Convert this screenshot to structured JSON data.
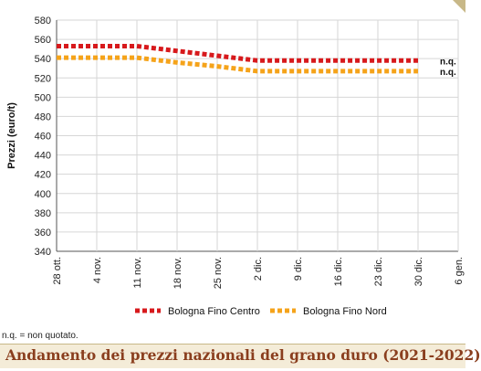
{
  "chart_data": {
    "type": "line",
    "title": "Andamento dei prezzi nazionali del grano duro (2021-2022)",
    "ylabel": "Prezzi (euro/t)",
    "xlabel": "",
    "ylim": [
      340,
      580
    ],
    "yticks": [
      340,
      360,
      380,
      400,
      420,
      440,
      460,
      480,
      500,
      520,
      540,
      560,
      580
    ],
    "x": [
      "28 ott.",
      "4 nov.",
      "11 nov.",
      "18 nov.",
      "25 nov.",
      "2 dic.",
      "9 dic.",
      "16 dic.",
      "23 dic.",
      "30 dic.",
      "6 gen."
    ],
    "grid": true,
    "legend_position": "bottom",
    "series": [
      {
        "name": "Bologna Fino Centro",
        "color": "#d7191c",
        "values": [
          553,
          553,
          553,
          548,
          543,
          538,
          538,
          538,
          538,
          538,
          null
        ],
        "end_label": "n.q."
      },
      {
        "name": "Bologna Fino Nord",
        "color": "#f5a31a",
        "values": [
          541,
          541,
          541,
          536,
          532,
          527,
          527,
          527,
          527,
          527,
          null
        ],
        "end_label": "n.q."
      }
    ],
    "note": "n.q. = non quotato."
  }
}
